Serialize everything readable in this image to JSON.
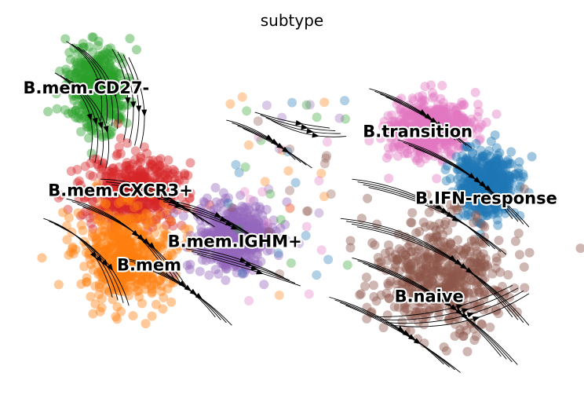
{
  "chart_data": {
    "type": "scatter",
    "title": "subtype",
    "xlabel": "",
    "ylabel": "",
    "axes_visible": false,
    "grid": false,
    "overlay": "velocity streamlines",
    "clusters": [
      {
        "name": "B.mem.CD27-",
        "color": "#2ca02c",
        "center": [
          0.16,
          0.21
        ],
        "spread": [
          0.07,
          0.14
        ]
      },
      {
        "name": "B.mem.CXCR3+",
        "color": "#d62728",
        "center": [
          0.22,
          0.47
        ],
        "spread": [
          0.12,
          0.12
        ]
      },
      {
        "name": "B.mem",
        "color": "#ff7f0e",
        "center": [
          0.21,
          0.63
        ],
        "spread": [
          0.11,
          0.17
        ]
      },
      {
        "name": "B.mem.IGHM+",
        "color": "#9467bd",
        "center": [
          0.4,
          0.59
        ],
        "spread": [
          0.09,
          0.12
        ]
      },
      {
        "name": "B.transition",
        "color": "#e377c2",
        "center": [
          0.74,
          0.31
        ],
        "spread": [
          0.1,
          0.1
        ]
      },
      {
        "name": "B.IFN-response",
        "color": "#1f77b4",
        "center": [
          0.84,
          0.45
        ],
        "spread": [
          0.07,
          0.11
        ]
      },
      {
        "name": "B.naive",
        "color": "#8c564b",
        "center": [
          0.76,
          0.68
        ],
        "spread": [
          0.16,
          0.2
        ]
      }
    ],
    "labels": [
      {
        "text": "B.mem.CD27-",
        "at": [
          0.14,
          0.21
        ]
      },
      {
        "text": "B.mem.CXCR3+",
        "at": [
          0.2,
          0.47
        ]
      },
      {
        "text": "B.mem.IGHM+",
        "at": [
          0.4,
          0.6
        ]
      },
      {
        "text": "B.mem",
        "at": [
          0.25,
          0.66
        ]
      },
      {
        "text": "B.transition",
        "at": [
          0.72,
          0.32
        ]
      },
      {
        "text": "B.IFN-response",
        "at": [
          0.84,
          0.49
        ]
      },
      {
        "text": "B.naive",
        "at": [
          0.74,
          0.74
        ]
      }
    ]
  }
}
